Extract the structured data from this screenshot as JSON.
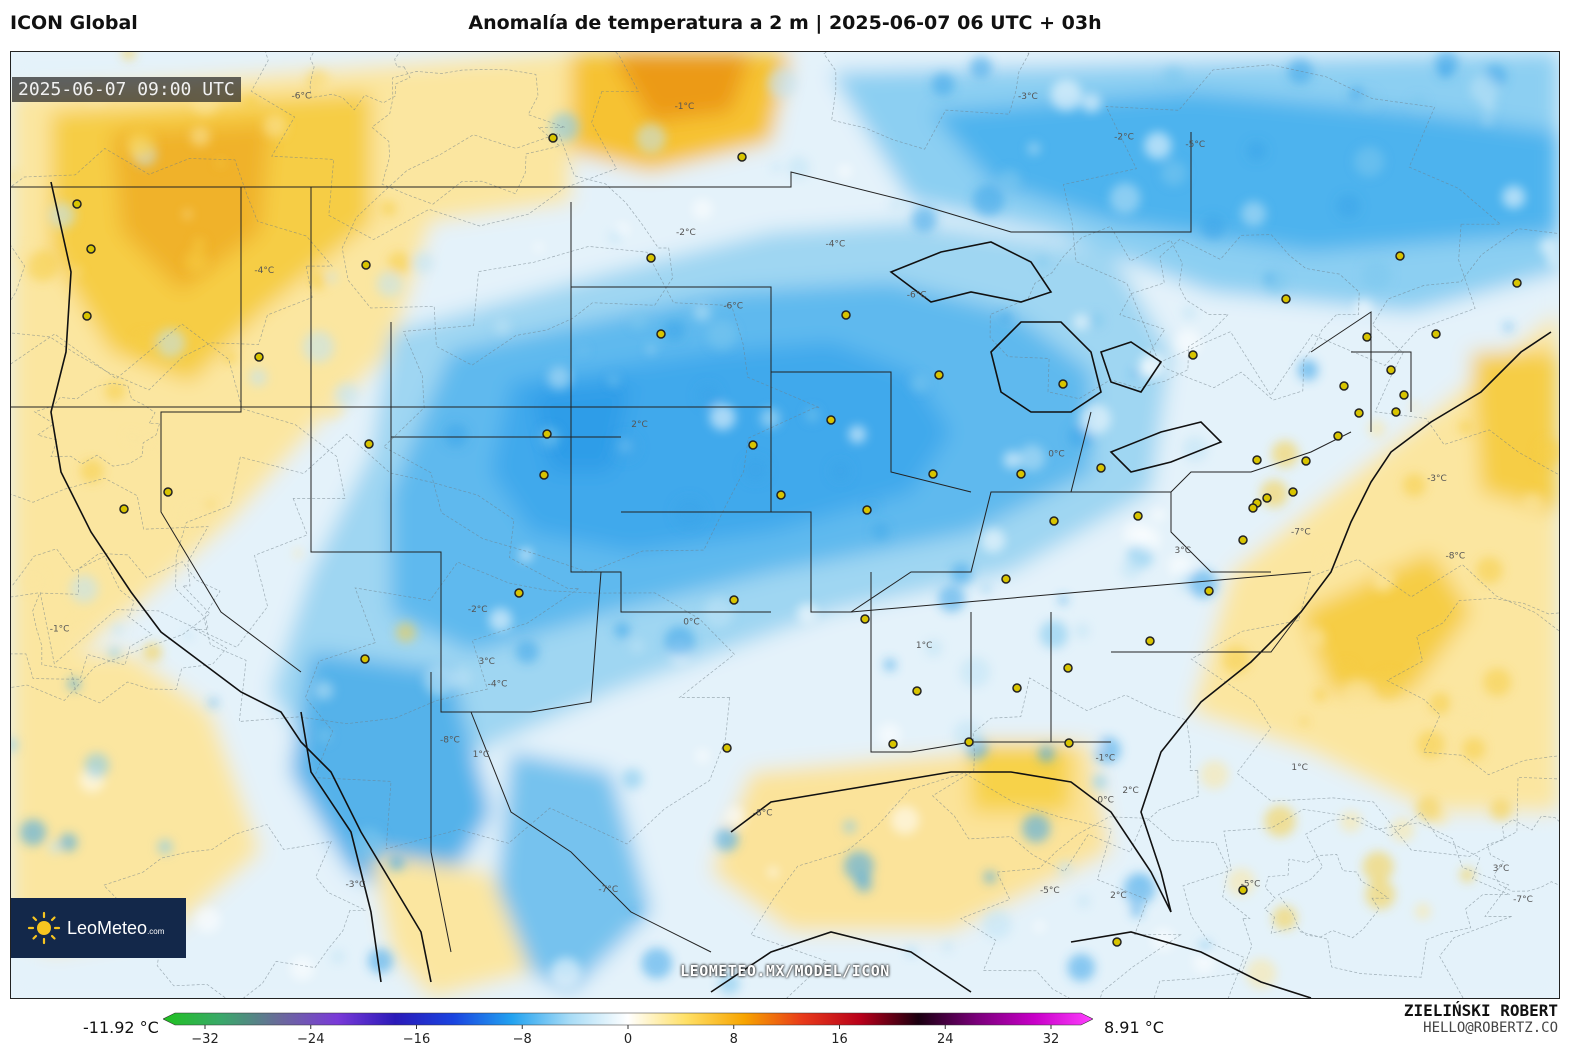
{
  "header": {
    "model": "ICON Global",
    "title": "Anomalía de temperatura a 2 m | 2025-06-07 06 UTC + 03h"
  },
  "map": {
    "valid_time": "2025-06-07 09:00 UTC",
    "watermark": "LEOMETEO.MX/MODEL/ICON",
    "logo": {
      "name": "LeoMeteo",
      "suffix": ".com"
    },
    "contour_labels": [
      "0°C",
      "-1°C",
      "1°C",
      "2°C",
      "-2°C",
      "-3°C",
      "-4°C",
      "-5°C",
      "-6°C",
      "-7°C",
      "-8°C",
      "3°C"
    ],
    "colors": {
      "ocean_cool": "#e6f3fb",
      "cold_light": "#bfe3f5",
      "cold_mid": "#7cc6ee",
      "cold_strong": "#3aa4ea",
      "warm_light": "#fbe9a6",
      "warm_mid": "#f7cf3a",
      "warm_strong": "#f0a818",
      "city_dot": "#d8c400"
    }
  },
  "legend": {
    "min_label": "-11.92 °C",
    "max_label": "8.91 °C",
    "ticks": [
      "−32",
      "−24",
      "−16",
      "−8",
      "0",
      "8",
      "16",
      "24",
      "32"
    ],
    "stops": [
      "#1fc21f",
      "#3aa86a",
      "#6a6a9a",
      "#7a3ad8",
      "#2a1ab8",
      "#1a44e0",
      "#22a2f0",
      "#a8dcf6",
      "#ffffff",
      "#ffe066",
      "#f7a400",
      "#e83a1a",
      "#b8001a",
      "#1a0010",
      "#7a007a",
      "#c800c8",
      "#ff40ff"
    ]
  },
  "credit": {
    "author": "ZIELIŃSKI ROBERT",
    "email": "HELLO@ROBERTZ.CO"
  }
}
